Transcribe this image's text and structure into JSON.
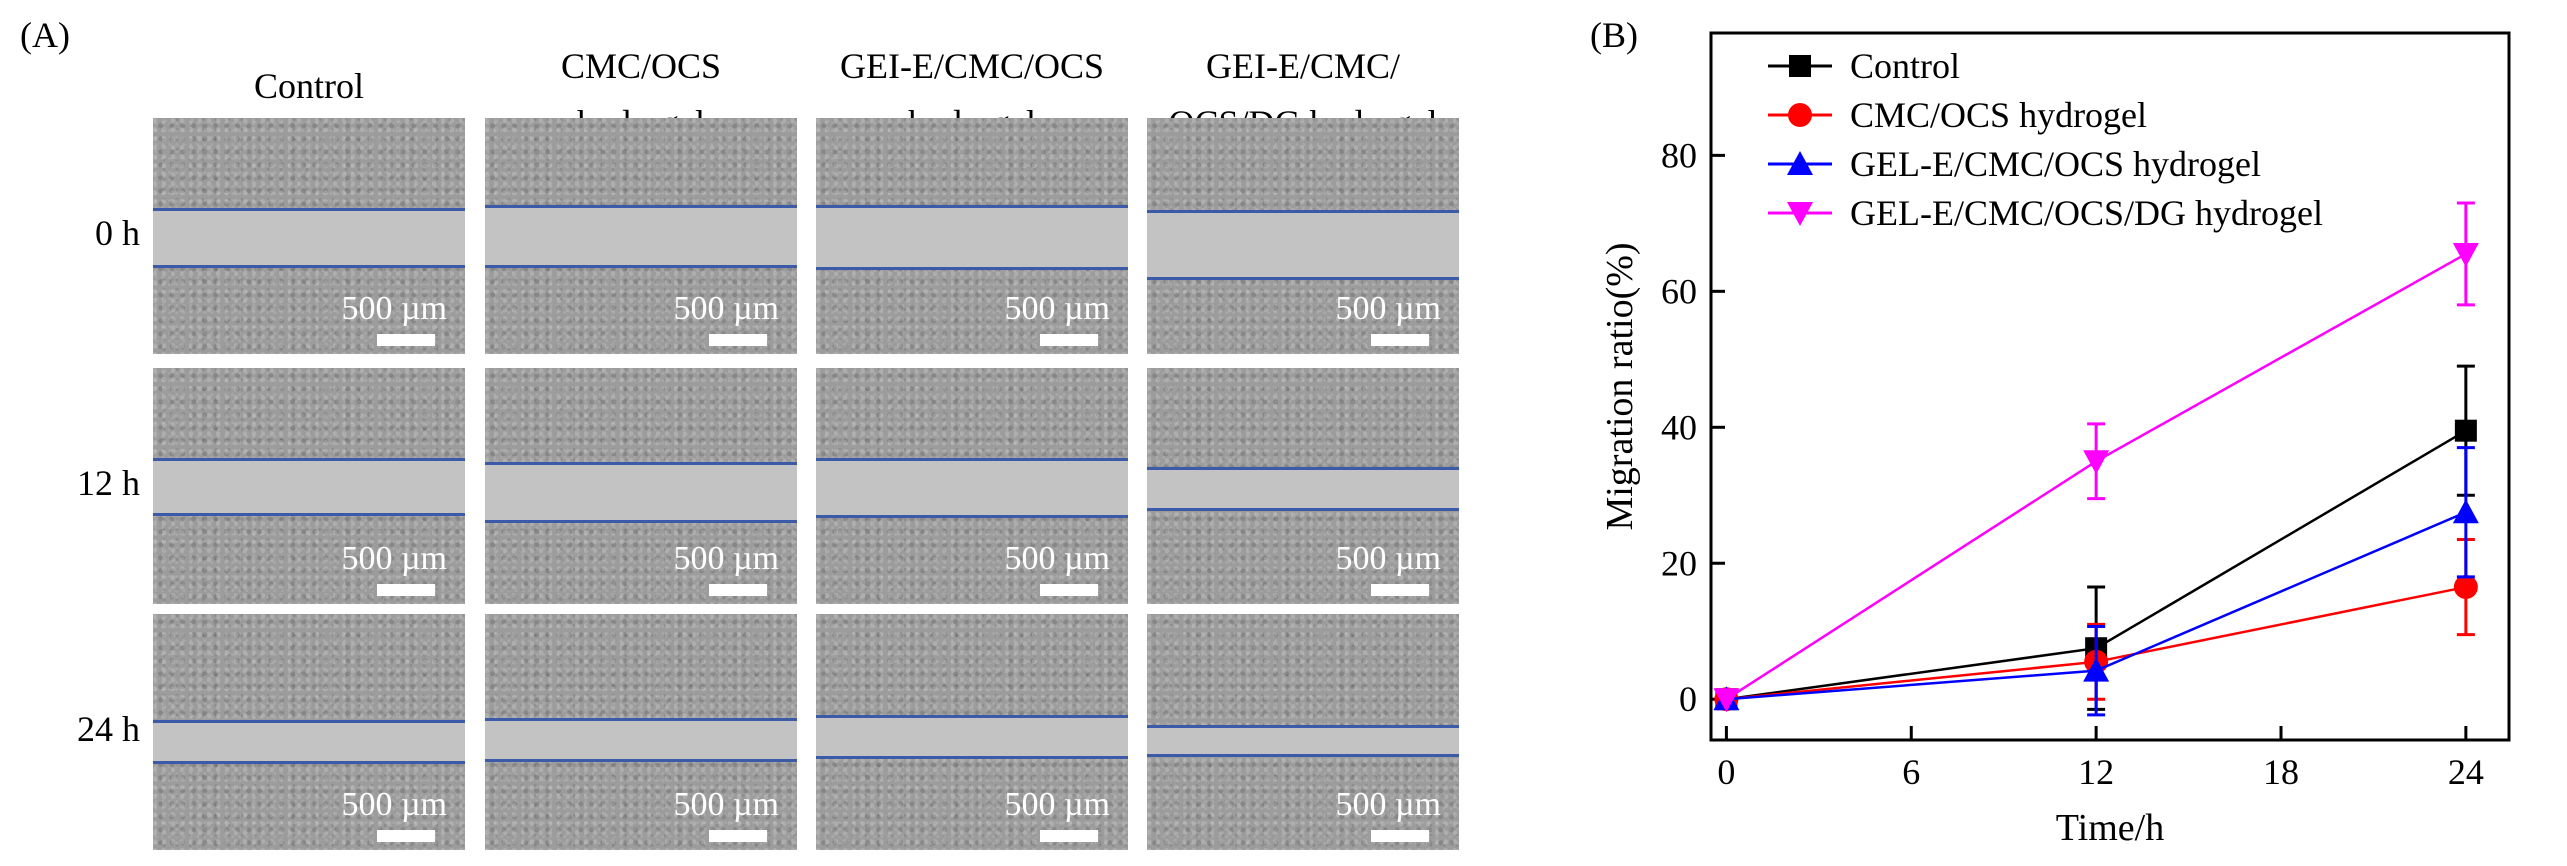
{
  "panel_a": {
    "label": "(A)",
    "columns": [
      {
        "lines": [
          "Control"
        ]
      },
      {
        "lines": [
          "CMC/OCS",
          "hydrogel"
        ]
      },
      {
        "lines": [
          "GEI-E/CMC/OCS",
          "hydrogel"
        ]
      },
      {
        "lines": [
          "GEI-E/CMC/",
          "OCS/DG hydrogel"
        ]
      }
    ],
    "rows": [
      "0 h",
      "12 h",
      "24 h"
    ],
    "scale_bar_label": "500 µm",
    "colors": {
      "wound_edge": "#3c5aa8",
      "scale_bar": "#ffffff"
    }
  },
  "chart_data": {
    "panel_label": "(B)",
    "type": "line",
    "title": "",
    "xlabel": "Time/h",
    "ylabel": "Migration ratio(%)",
    "x": [
      0,
      12,
      24
    ],
    "xticks": [
      0,
      6,
      12,
      18,
      24
    ],
    "yticks": [
      0,
      20,
      40,
      60,
      80
    ],
    "xlim": [
      -0.5,
      25.4
    ],
    "ylim": [
      -6,
      98
    ],
    "grid": false,
    "legend_position": "top-left",
    "series": [
      {
        "name": "Control",
        "color": "#000000",
        "marker": "square",
        "values": [
          0,
          7.5,
          39.5
        ],
        "errors": [
          0,
          9,
          9.5
        ]
      },
      {
        "name": "CMC/OCS hydrogel",
        "color": "#ff0000",
        "marker": "circle",
        "values": [
          0,
          5.5,
          16.5
        ],
        "errors": [
          0,
          5.5,
          7
        ]
      },
      {
        "name": "GEL-E/CMC/OCS hydrogel",
        "color": "#0000ff",
        "marker": "triangle-up",
        "values": [
          0,
          4.2,
          27.5
        ],
        "errors": [
          0,
          6.5,
          9.5
        ]
      },
      {
        "name": "GEL-E/CMC/OCS/DG hydrogel",
        "color": "#ff00ff",
        "marker": "triangle-down",
        "values": [
          0,
          35,
          65.5
        ],
        "errors": [
          0,
          5.5,
          7.5
        ]
      }
    ]
  }
}
